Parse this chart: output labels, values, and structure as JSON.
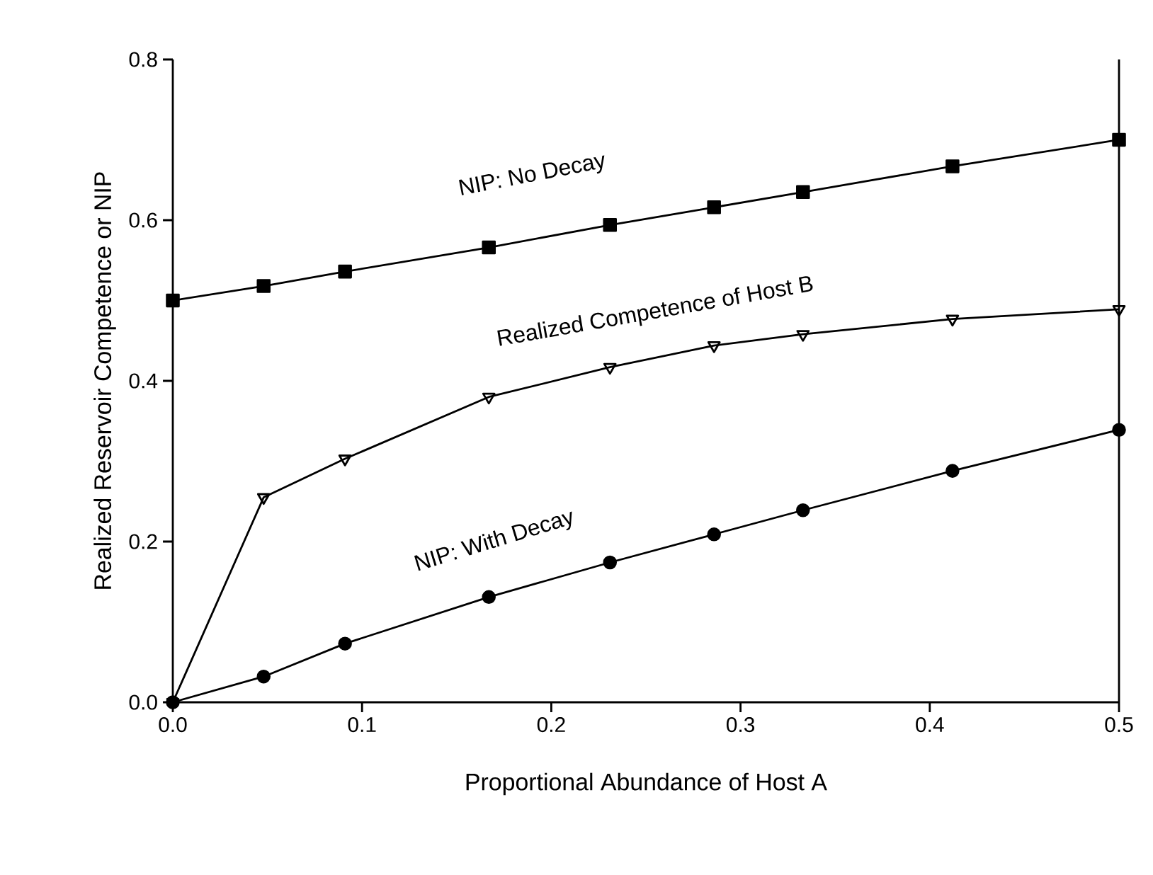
{
  "chart_data": {
    "type": "line",
    "xlabel": "Proportional Abundance of Host A",
    "ylabel": "Realized Reservoir Competence or NIP",
    "xlim": [
      0,
      0.5
    ],
    "ylim": [
      0,
      0.8
    ],
    "xticks": [
      {
        "value": 0,
        "label": "0.0"
      },
      0.1,
      0.2,
      0.3,
      0.4,
      0.5
    ],
    "yticks": [
      {
        "value": 0,
        "label": "0.0"
      },
      0.2,
      0.4,
      0.6,
      0.8
    ],
    "x": [
      0,
      0.048,
      0.091,
      0.167,
      0.231,
      0.286,
      0.333,
      0.412,
      0.5
    ],
    "grid": false,
    "legend": false,
    "line_style": "solid",
    "series": [
      {
        "name": "NIP: No Decay",
        "color": "#000000",
        "marker": "square",
        "values": [
          0.5,
          0.518,
          0.536,
          0.566,
          0.594,
          0.616,
          0.635,
          0.667,
          0.7
        ]
      },
      {
        "name": "Realized Competence of Host B",
        "color": "#000000",
        "marker": "triangle",
        "values": [
          0,
          0.255,
          0.303,
          0.38,
          0.417,
          0.444,
          0.458,
          0.477,
          0.489
        ]
      },
      {
        "name": "NIP: With Decay",
        "color": "#000000",
        "marker": "circle",
        "values": [
          0,
          0.032,
          0.073,
          0.131,
          0.174,
          0.209,
          0.239,
          0.288,
          0.339
        ]
      }
    ]
  }
}
